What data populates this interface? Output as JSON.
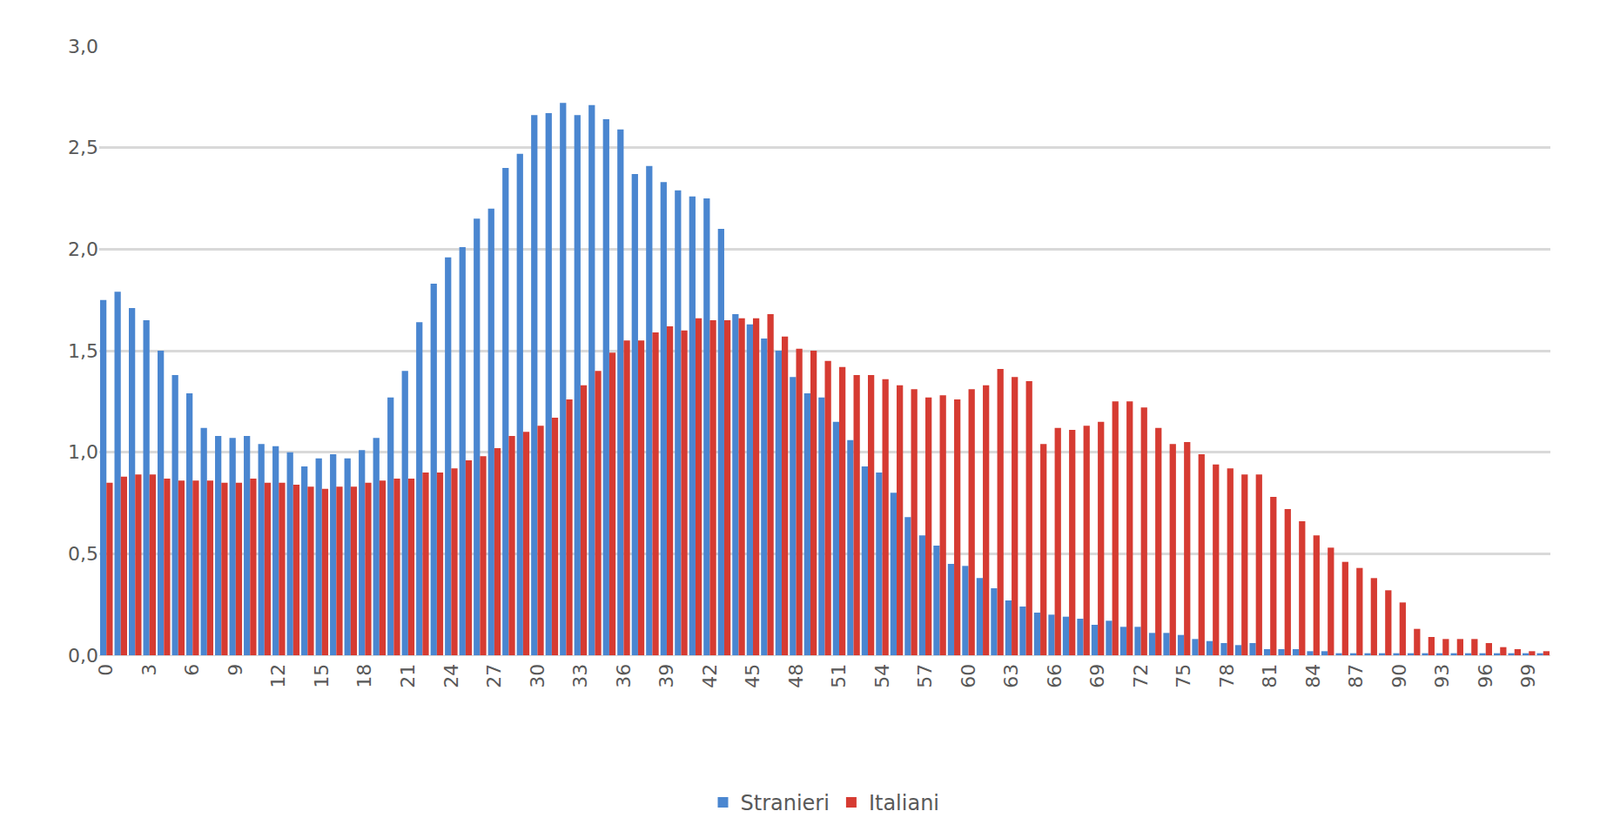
{
  "chart_data": {
    "type": "bar",
    "x": [
      0,
      1,
      2,
      3,
      4,
      5,
      6,
      7,
      8,
      9,
      10,
      11,
      12,
      13,
      14,
      15,
      16,
      17,
      18,
      19,
      20,
      21,
      22,
      23,
      24,
      25,
      26,
      27,
      28,
      29,
      30,
      31,
      32,
      33,
      34,
      35,
      36,
      37,
      38,
      39,
      40,
      41,
      42,
      43,
      44,
      45,
      46,
      47,
      48,
      49,
      50,
      51,
      52,
      53,
      54,
      55,
      56,
      57,
      58,
      59,
      60,
      61,
      62,
      63,
      64,
      65,
      66,
      67,
      68,
      69,
      70,
      71,
      72,
      73,
      74,
      75,
      76,
      77,
      78,
      79,
      80,
      81,
      82,
      83,
      84,
      85,
      86,
      87,
      88,
      89,
      90,
      91,
      92,
      93,
      94,
      95,
      96,
      97,
      98,
      99,
      100
    ],
    "series": [
      {
        "name": "Stranieri",
        "color": "#4a86d0",
        "values": [
          1.75,
          1.79,
          1.71,
          1.65,
          1.5,
          1.38,
          1.29,
          1.12,
          1.08,
          1.07,
          1.08,
          1.04,
          1.03,
          1.0,
          0.93,
          0.97,
          0.99,
          0.97,
          1.01,
          1.07,
          1.27,
          1.4,
          1.64,
          1.83,
          1.96,
          2.01,
          2.15,
          2.2,
          2.4,
          2.47,
          2.66,
          2.67,
          2.72,
          2.66,
          2.71,
          2.64,
          2.59,
          2.37,
          2.41,
          2.33,
          2.29,
          2.26,
          2.25,
          2.1,
          1.68,
          1.63,
          1.56,
          1.5,
          1.37,
          1.29,
          1.27,
          1.15,
          1.06,
          0.93,
          0.9,
          0.8,
          0.68,
          0.59,
          0.54,
          0.45,
          0.44,
          0.38,
          0.33,
          0.27,
          0.24,
          0.21,
          0.2,
          0.19,
          0.18,
          0.15,
          0.17,
          0.14,
          0.14,
          0.11,
          0.11,
          0.1,
          0.08,
          0.07,
          0.06,
          0.05,
          0.06,
          0.03,
          0.03,
          0.03,
          0.02,
          0.02,
          0.01,
          0.01,
          0.01,
          0.01,
          0.01,
          0.01,
          0.01,
          0.01,
          0.01,
          0.01,
          0.01,
          0.01,
          0.01,
          0.01,
          0.01
        ]
      },
      {
        "name": "Italiani",
        "color": "#d63b32",
        "values": [
          0.85,
          0.88,
          0.89,
          0.89,
          0.87,
          0.86,
          0.86,
          0.86,
          0.85,
          0.85,
          0.87,
          0.85,
          0.85,
          0.84,
          0.83,
          0.82,
          0.83,
          0.83,
          0.85,
          0.86,
          0.87,
          0.87,
          0.9,
          0.9,
          0.92,
          0.96,
          0.98,
          1.02,
          1.08,
          1.1,
          1.13,
          1.17,
          1.26,
          1.33,
          1.4,
          1.49,
          1.55,
          1.55,
          1.59,
          1.62,
          1.6,
          1.66,
          1.65,
          1.65,
          1.66,
          1.66,
          1.68,
          1.57,
          1.51,
          1.5,
          1.45,
          1.42,
          1.38,
          1.38,
          1.36,
          1.33,
          1.31,
          1.27,
          1.28,
          1.26,
          1.31,
          1.33,
          1.41,
          1.37,
          1.35,
          1.04,
          1.12,
          1.11,
          1.13,
          1.15,
          1.25,
          1.25,
          1.22,
          1.12,
          1.04,
          1.05,
          0.99,
          0.94,
          0.92,
          0.89,
          0.89,
          0.78,
          0.72,
          0.66,
          0.59,
          0.53,
          0.46,
          0.43,
          0.38,
          0.32,
          0.26,
          0.13,
          0.09,
          0.08,
          0.08,
          0.08,
          0.06,
          0.04,
          0.03,
          0.02,
          0.02
        ]
      }
    ],
    "xlim": [
      -0.5,
      100.5
    ],
    "xticks": [
      0,
      3,
      6,
      9,
      12,
      15,
      18,
      21,
      24,
      27,
      30,
      33,
      36,
      39,
      42,
      45,
      48,
      51,
      54,
      57,
      60,
      63,
      66,
      69,
      72,
      75,
      78,
      81,
      84,
      87,
      90,
      93,
      96,
      99
    ],
    "ylim": [
      0,
      3.0
    ],
    "yticks": [
      {
        "value": 0,
        "label": "0,0"
      },
      {
        "value": 0.5,
        "label": "0,5"
      },
      {
        "value": 1.0,
        "label": "1,0"
      },
      {
        "value": 1.5,
        "label": "1,5"
      },
      {
        "value": 2.0,
        "label": "2,0"
      },
      {
        "value": 2.5,
        "label": "2,5"
      },
      {
        "value": 3.0,
        "label": "3,0"
      }
    ],
    "grid": true,
    "legend": "bottom"
  }
}
